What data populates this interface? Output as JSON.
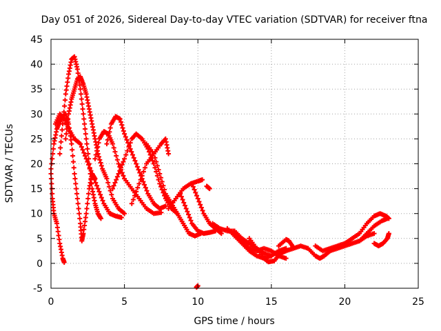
{
  "chart_data": {
    "type": "scatter",
    "title": "Day 051 of 2026, Sidereal Day-to-day VTEC variation (SDTVAR) for receiver ftna",
    "xlabel": "GPS time / hours",
    "ylabel": "SDTVAR / TECUs",
    "xlim": [
      0,
      25
    ],
    "ylim": [
      -5,
      45
    ],
    "xticks": [
      0,
      5,
      10,
      15,
      20,
      25
    ],
    "yticks": [
      -5,
      0,
      5,
      10,
      15,
      20,
      25,
      30,
      35,
      40,
      45
    ],
    "grid": true,
    "marker": "+",
    "series_color": "#ff0000",
    "series": [
      {
        "name": "trace-1",
        "points": [
          [
            0.0,
            19
          ],
          [
            0.2,
            24
          ],
          [
            0.4,
            27
          ],
          [
            0.6,
            28.5
          ],
          [
            0.8,
            29.5
          ],
          [
            1.0,
            30
          ],
          [
            1.2,
            28
          ],
          [
            1.4,
            24
          ],
          [
            1.6,
            18
          ],
          [
            1.8,
            13
          ],
          [
            2.0,
            8
          ],
          [
            2.1,
            4.5
          ],
          [
            2.2,
            6
          ],
          [
            2.4,
            10
          ],
          [
            2.6,
            15
          ],
          [
            2.8,
            18
          ],
          [
            3.0,
            17
          ]
        ]
      },
      {
        "name": "trace-2",
        "points": [
          [
            0.6,
            22
          ],
          [
            0.8,
            28
          ],
          [
            1.0,
            34
          ],
          [
            1.2,
            38
          ],
          [
            1.4,
            41
          ],
          [
            1.6,
            41.5
          ],
          [
            1.8,
            39
          ],
          [
            2.0,
            35
          ],
          [
            2.2,
            30
          ],
          [
            2.4,
            25
          ],
          [
            2.6,
            20
          ],
          [
            2.8,
            15
          ],
          [
            3.0,
            12
          ],
          [
            3.2,
            10
          ],
          [
            3.4,
            9
          ]
        ]
      },
      {
        "name": "trace-3",
        "points": [
          [
            1.0,
            25
          ],
          [
            1.2,
            30
          ],
          [
            1.4,
            33
          ],
          [
            1.6,
            35
          ],
          [
            1.8,
            37
          ],
          [
            2.0,
            37.5
          ],
          [
            2.2,
            36
          ],
          [
            2.4,
            34
          ],
          [
            2.6,
            31
          ],
          [
            2.8,
            28
          ],
          [
            3.0,
            25
          ],
          [
            3.2,
            22
          ],
          [
            3.5,
            19
          ],
          [
            3.8,
            17
          ],
          [
            4.2,
            13
          ],
          [
            4.6,
            11
          ],
          [
            5.0,
            10
          ]
        ]
      },
      {
        "name": "trace-4",
        "points": [
          [
            0.3,
            28
          ],
          [
            0.6,
            30
          ],
          [
            0.9,
            29
          ],
          [
            1.2,
            27
          ],
          [
            1.6,
            25
          ],
          [
            2.0,
            24
          ],
          [
            2.4,
            21
          ],
          [
            2.8,
            18
          ],
          [
            3.2,
            15
          ],
          [
            3.6,
            12
          ],
          [
            4.0,
            10
          ],
          [
            4.4,
            9.5
          ],
          [
            4.8,
            9.2
          ]
        ]
      },
      {
        "name": "trace-5",
        "points": [
          [
            0.0,
            18
          ],
          [
            0.1,
            13
          ],
          [
            0.2,
            10
          ],
          [
            0.4,
            8
          ],
          [
            0.6,
            4
          ],
          [
            0.8,
            1
          ],
          [
            0.9,
            0.2
          ]
        ]
      },
      {
        "name": "trace-6",
        "points": [
          [
            3.0,
            21
          ],
          [
            3.3,
            25
          ],
          [
            3.6,
            26.5
          ],
          [
            3.9,
            26
          ],
          [
            4.2,
            24
          ],
          [
            4.6,
            20
          ],
          [
            5.0,
            17
          ],
          [
            5.5,
            15
          ],
          [
            6.0,
            13
          ],
          [
            6.5,
            11
          ],
          [
            7.0,
            10
          ],
          [
            7.5,
            10.2
          ]
        ]
      },
      {
        "name": "trace-7",
        "points": [
          [
            3.8,
            24
          ],
          [
            4.1,
            28
          ],
          [
            4.4,
            29.5
          ],
          [
            4.7,
            29
          ],
          [
            5.0,
            26
          ],
          [
            5.4,
            23
          ],
          [
            5.8,
            20
          ],
          [
            6.2,
            17
          ],
          [
            6.6,
            14
          ],
          [
            7.0,
            12
          ],
          [
            7.4,
            11
          ],
          [
            7.8,
            11.5
          ]
        ]
      },
      {
        "name": "trace-8",
        "points": [
          [
            4.2,
            15
          ],
          [
            4.6,
            18
          ],
          [
            5.0,
            21
          ],
          [
            5.5,
            25
          ],
          [
            5.8,
            26
          ],
          [
            6.2,
            25
          ],
          [
            6.6,
            23
          ],
          [
            7.0,
            20
          ],
          [
            7.4,
            16
          ],
          [
            7.8,
            13
          ],
          [
            8.2,
            11
          ],
          [
            8.6,
            10
          ]
        ]
      },
      {
        "name": "trace-9",
        "points": [
          [
            5.5,
            12
          ],
          [
            6.0,
            16
          ],
          [
            6.5,
            20
          ],
          [
            7.0,
            22
          ],
          [
            7.5,
            24
          ],
          [
            7.8,
            25
          ],
          [
            8.0,
            22
          ]
        ]
      },
      {
        "name": "trace-10",
        "points": [
          [
            6.5,
            24
          ],
          [
            7.0,
            22
          ],
          [
            7.4,
            18
          ],
          [
            7.8,
            14
          ],
          [
            8.2,
            12
          ],
          [
            8.6,
            10
          ],
          [
            9.0,
            8
          ],
          [
            9.4,
            6
          ],
          [
            9.8,
            5.5
          ],
          [
            10.2,
            6
          ]
        ]
      },
      {
        "name": "trace-11",
        "points": [
          [
            8.0,
            11
          ],
          [
            8.5,
            13
          ],
          [
            9.0,
            15
          ],
          [
            9.5,
            16
          ],
          [
            10.0,
            16.5
          ],
          [
            10.3,
            16.8
          ]
        ]
      },
      {
        "name": "trace-12",
        "points": [
          [
            8.8,
            14
          ],
          [
            9.2,
            11
          ],
          [
            9.6,
            8
          ],
          [
            10.0,
            6.5
          ],
          [
            10.4,
            6
          ],
          [
            10.8,
            6.2
          ],
          [
            11.2,
            6.5
          ]
        ]
      },
      {
        "name": "trace-13",
        "points": [
          [
            9.6,
            16
          ],
          [
            10.0,
            13
          ],
          [
            10.4,
            10
          ],
          [
            10.8,
            8
          ],
          [
            11.2,
            7
          ],
          [
            11.6,
            6
          ]
        ]
      },
      {
        "name": "trace-14",
        "points": [
          [
            10.6,
            15.5
          ],
          [
            10.8,
            15
          ]
        ]
      },
      {
        "name": "trace-15",
        "points": [
          [
            10.0,
            -4.5
          ],
          [
            9.9,
            -4.8
          ]
        ]
      },
      {
        "name": "trace-16",
        "points": [
          [
            11.0,
            8
          ],
          [
            11.5,
            7
          ],
          [
            12.0,
            6.5
          ],
          [
            12.5,
            6.5
          ],
          [
            13.0,
            5
          ],
          [
            13.5,
            4
          ],
          [
            14.0,
            3
          ],
          [
            14.5,
            2
          ],
          [
            15.0,
            1.5
          ]
        ]
      },
      {
        "name": "trace-17",
        "points": [
          [
            12.0,
            7
          ],
          [
            12.5,
            5.5
          ],
          [
            13.0,
            4
          ],
          [
            13.5,
            2.5
          ],
          [
            14.0,
            1.5
          ],
          [
            14.5,
            1
          ],
          [
            15.0,
            1.5
          ],
          [
            15.5,
            2.5
          ],
          [
            16.0,
            3
          ]
        ]
      },
      {
        "name": "trace-18",
        "points": [
          [
            12.5,
            6
          ],
          [
            13.0,
            4.5
          ],
          [
            13.5,
            3
          ],
          [
            14.0,
            2.5
          ],
          [
            14.5,
            3
          ],
          [
            15.0,
            2.5
          ],
          [
            15.5,
            1.5
          ],
          [
            16.0,
            1
          ]
        ]
      },
      {
        "name": "trace-19",
        "points": [
          [
            13.5,
            5
          ],
          [
            14.0,
            3
          ],
          [
            14.5,
            1
          ],
          [
            14.8,
            0.3
          ],
          [
            15.2,
            0.5
          ],
          [
            15.6,
            2
          ],
          [
            16.0,
            2.5
          ],
          [
            16.5,
            3
          ],
          [
            17.0,
            3.5
          ],
          [
            17.5,
            3
          ]
        ]
      },
      {
        "name": "trace-20",
        "points": [
          [
            15.5,
            3.5
          ],
          [
            16.0,
            4.8
          ],
          [
            16.2,
            4.5
          ],
          [
            16.5,
            3.2
          ]
        ]
      },
      {
        "name": "trace-21",
        "points": [
          [
            17.5,
            3
          ],
          [
            18.0,
            1.5
          ],
          [
            18.3,
            1
          ],
          [
            18.6,
            1.5
          ],
          [
            19.0,
            2.5
          ],
          [
            19.5,
            3
          ],
          [
            20.0,
            3.5
          ],
          [
            20.5,
            4
          ],
          [
            21.0,
            4.5
          ],
          [
            21.5,
            5.5
          ],
          [
            22.0,
            6
          ]
        ]
      },
      {
        "name": "trace-22",
        "points": [
          [
            18.0,
            3.5
          ],
          [
            18.5,
            2.5
          ],
          [
            19.0,
            3
          ],
          [
            19.5,
            3.5
          ],
          [
            20.0,
            4
          ],
          [
            20.5,
            5
          ],
          [
            21.0,
            6
          ],
          [
            21.5,
            8
          ],
          [
            22.0,
            9.5
          ],
          [
            22.4,
            10
          ],
          [
            22.8,
            9.5
          ],
          [
            23.0,
            9
          ]
        ]
      },
      {
        "name": "trace-23",
        "points": [
          [
            21.0,
            4.5
          ],
          [
            21.5,
            6
          ],
          [
            22.0,
            7.5
          ],
          [
            22.5,
            8.5
          ],
          [
            22.9,
            9
          ]
        ]
      },
      {
        "name": "trace-24",
        "points": [
          [
            22.0,
            4
          ],
          [
            22.3,
            3.5
          ],
          [
            22.6,
            4
          ],
          [
            22.9,
            5
          ],
          [
            23.0,
            6
          ]
        ]
      }
    ]
  }
}
